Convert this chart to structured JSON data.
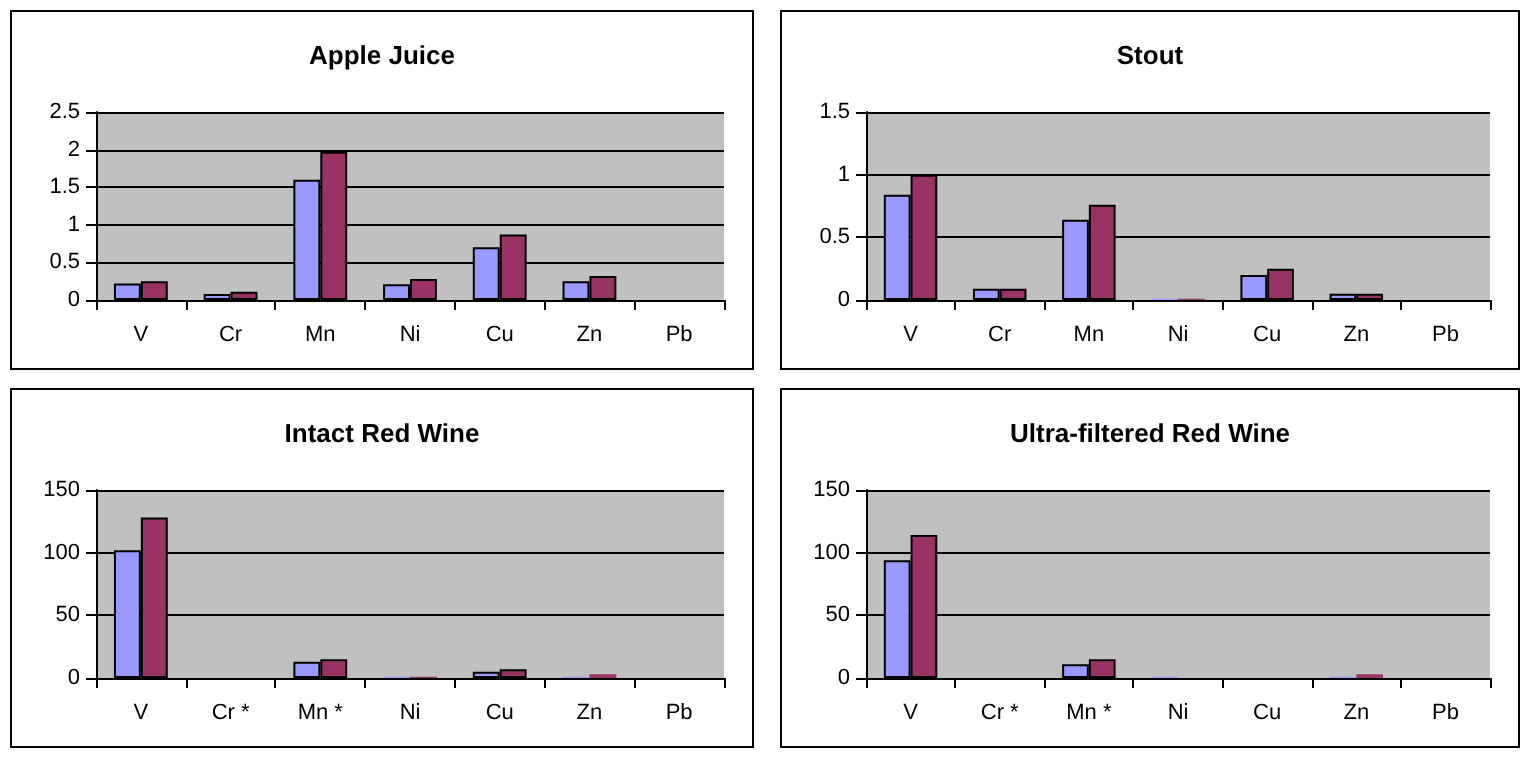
{
  "chart_data": [
    {
      "type": "bar",
      "title": "Apple Juice",
      "categories": [
        "V",
        "Cr",
        "Mn",
        "Ni",
        "Cu",
        "Zn",
        "Pb"
      ],
      "ylim": [
        0,
        2.5
      ],
      "yticks": [
        0,
        0.5,
        1,
        1.5,
        2,
        2.5
      ],
      "grid": "y",
      "series": [
        {
          "color": "#9999ff",
          "values": [
            0.22,
            0.08,
            1.6,
            0.21,
            0.7,
            0.25,
            null
          ]
        },
        {
          "color": "#993366",
          "values": [
            0.25,
            0.11,
            1.97,
            0.28,
            0.87,
            0.32,
            null
          ]
        }
      ]
    },
    {
      "type": "bar",
      "title": "Stout",
      "categories": [
        "V",
        "Cr",
        "Mn",
        "Ni",
        "Cu",
        "Zn",
        "Pb"
      ],
      "ylim": [
        0,
        1.5
      ],
      "yticks": [
        0,
        0.5,
        1,
        1.5
      ],
      "grid": "y",
      "series": [
        {
          "color": "#9999ff",
          "values": [
            0.84,
            0.09,
            0.64,
            0.01,
            0.2,
            0.05,
            null
          ]
        },
        {
          "color": "#993366",
          "values": [
            1.0,
            0.09,
            0.76,
            0.01,
            0.25,
            0.05,
            null
          ]
        }
      ]
    },
    {
      "type": "bar",
      "title": "Intact Red Wine",
      "categories": [
        "V",
        "Cr *",
        "Mn *",
        "Ni",
        "Cu",
        "Zn",
        "Pb"
      ],
      "ylim": [
        0,
        150
      ],
      "yticks": [
        0,
        50,
        100,
        150
      ],
      "grid": "y",
      "series": [
        {
          "color": "#9999ff",
          "values": [
            102,
            null,
            13,
            1,
            5,
            1,
            null
          ]
        },
        {
          "color": "#993366",
          "values": [
            128,
            null,
            15,
            1,
            7,
            3,
            null
          ]
        }
      ]
    },
    {
      "type": "bar",
      "title": "Ultra-filtered Red Wine",
      "categories": [
        "V",
        "Cr *",
        "Mn *",
        "Ni",
        "Cu",
        "Zn",
        "Pb"
      ],
      "ylim": [
        0,
        150
      ],
      "yticks": [
        0,
        50,
        100,
        150
      ],
      "grid": "y",
      "series": [
        {
          "color": "#9999ff",
          "values": [
            94,
            null,
            11,
            1,
            null,
            1,
            null
          ]
        },
        {
          "color": "#993366",
          "values": [
            114,
            null,
            15,
            null,
            null,
            3,
            null
          ]
        }
      ]
    }
  ]
}
